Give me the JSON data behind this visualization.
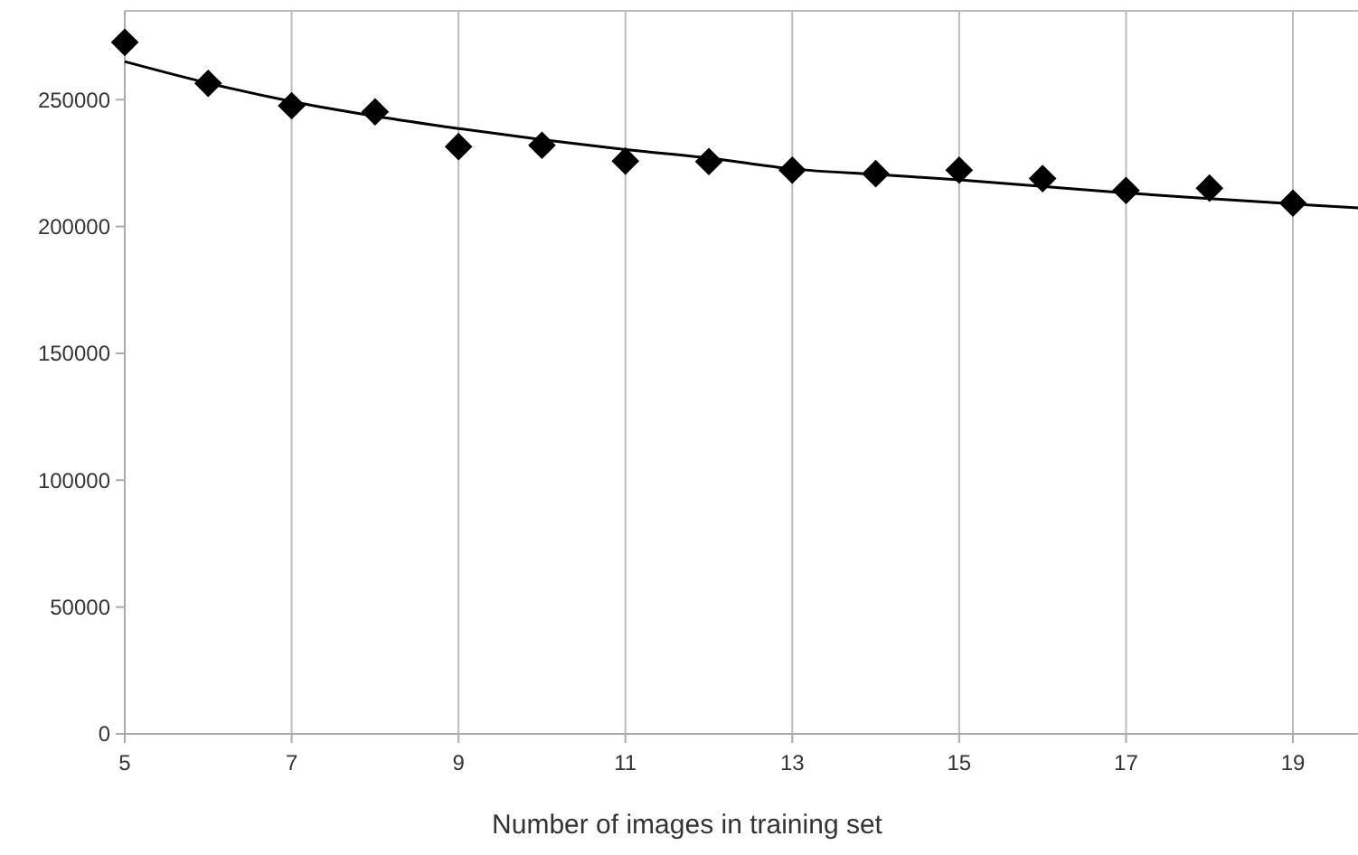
{
  "chart_data": {
    "type": "scatter",
    "xlabel": "Number of images in training set",
    "xlim": [
      5,
      19.78
    ],
    "xticks": [
      5,
      7,
      9,
      11,
      13,
      15,
      17,
      19
    ],
    "ylim": [
      0,
      285000
    ],
    "yticks": [
      0,
      50000,
      100000,
      150000,
      200000,
      250000
    ],
    "grid": "x",
    "marker": "diamond",
    "series": [
      {
        "color": "#000000",
        "x": [
          5,
          6,
          7,
          8,
          9,
          10,
          11,
          12,
          13,
          14,
          15,
          16,
          17,
          18,
          19
        ],
        "values": [
          272600,
          256400,
          247600,
          245200,
          231500,
          232000,
          225800,
          225600,
          222200,
          220800,
          222200,
          218900,
          214200,
          215100,
          209200
        ]
      },
      {
        "type": "line",
        "color": "#000000",
        "marker": "none",
        "line_style": "solid",
        "x": [
          5,
          6,
          7,
          8,
          9,
          10,
          11,
          12,
          13,
          14,
          15,
          16,
          17,
          18,
          19,
          19.78
        ],
        "values": [
          265000,
          256500,
          249300,
          243500,
          238600,
          234200,
          230300,
          227000,
          222700,
          220500,
          218400,
          215800,
          213200,
          211000,
          208900,
          207300
        ]
      }
    ]
  }
}
